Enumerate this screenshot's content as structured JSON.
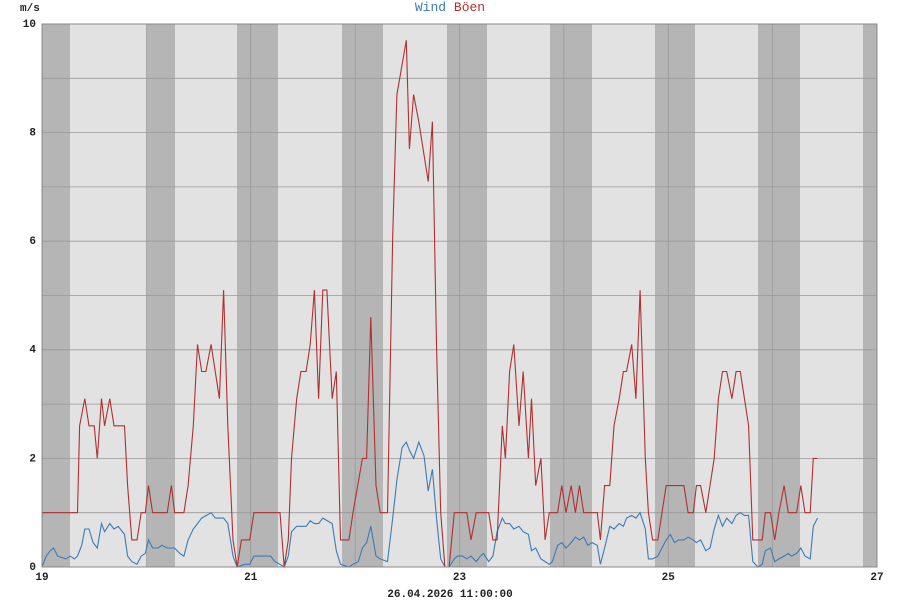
{
  "chart_data": {
    "type": "line",
    "unit_label": "m/s",
    "footer": "26.04.2026 11:00:00",
    "xlim": [
      19,
      27
    ],
    "xticks": [
      19,
      21,
      23,
      25,
      27
    ],
    "xminor": [
      20,
      22,
      24,
      26
    ],
    "ylim": [
      0,
      10
    ],
    "yticks": [
      0,
      2,
      4,
      6,
      8,
      10
    ],
    "yminor": [
      1,
      3,
      5,
      7,
      9
    ],
    "grid": true,
    "series": [
      {
        "name": "Wind",
        "color": "#3a7bb8",
        "x": [
          19.0,
          19.04,
          19.08,
          19.11,
          19.15,
          19.23,
          19.27,
          19.31,
          19.34,
          19.38,
          19.41,
          19.45,
          19.49,
          19.53,
          19.57,
          19.6,
          19.65,
          19.69,
          19.73,
          19.79,
          19.82,
          19.86,
          19.91,
          19.95,
          19.99,
          20.02,
          20.06,
          20.11,
          20.15,
          20.2,
          20.27,
          20.32,
          20.36,
          20.4,
          20.45,
          20.49,
          20.53,
          20.62,
          20.66,
          20.74,
          20.78,
          20.83,
          20.87,
          20.94,
          20.99,
          21.03,
          21.11,
          21.19,
          21.23,
          21.28,
          21.32,
          21.36,
          21.39,
          21.44,
          21.53,
          21.57,
          21.61,
          21.65,
          21.69,
          21.78,
          21.82,
          21.86,
          21.94,
          21.98,
          22.03,
          22.07,
          22.11,
          22.15,
          22.2,
          22.24,
          22.31,
          22.36,
          22.4,
          22.45,
          22.49,
          22.52,
          22.56,
          22.61,
          22.66,
          22.7,
          22.74,
          22.78,
          22.82,
          22.86,
          22.9,
          22.95,
          22.98,
          23.03,
          23.07,
          23.11,
          23.16,
          23.2,
          23.23,
          23.28,
          23.32,
          23.36,
          23.41,
          23.44,
          23.48,
          23.52,
          23.57,
          23.61,
          23.66,
          23.69,
          23.73,
          23.78,
          23.82,
          23.86,
          23.89,
          23.94,
          23.98,
          24.02,
          24.07,
          24.11,
          24.15,
          24.19,
          24.23,
          24.27,
          24.32,
          24.35,
          24.39,
          24.44,
          24.48,
          24.53,
          24.57,
          24.6,
          24.65,
          24.69,
          24.73,
          24.78,
          24.81,
          24.85,
          24.9,
          24.94,
          24.98,
          25.02,
          25.06,
          25.1,
          25.15,
          25.19,
          25.24,
          25.27,
          25.31,
          25.36,
          25.4,
          25.44,
          25.48,
          25.52,
          25.56,
          25.61,
          25.65,
          25.69,
          25.73,
          25.77,
          25.81,
          25.86,
          25.9,
          25.93,
          25.98,
          26.02,
          26.06,
          26.11,
          26.15,
          26.18,
          26.23,
          26.27,
          26.31,
          26.36,
          26.39,
          26.43
        ],
        "values": [
          0.0,
          0.2,
          0.3,
          0.35,
          0.2,
          0.15,
          0.2,
          0.15,
          0.2,
          0.4,
          0.7,
          0.7,
          0.45,
          0.35,
          0.8,
          0.65,
          0.8,
          0.7,
          0.75,
          0.6,
          0.2,
          0.1,
          0.05,
          0.2,
          0.25,
          0.5,
          0.35,
          0.35,
          0.4,
          0.35,
          0.35,
          0.25,
          0.2,
          0.5,
          0.7,
          0.8,
          0.9,
          1.0,
          0.9,
          0.9,
          0.8,
          0.2,
          0.0,
          0.05,
          0.05,
          0.2,
          0.2,
          0.2,
          0.1,
          0.05,
          0.0,
          0.2,
          0.65,
          0.75,
          0.75,
          0.85,
          0.8,
          0.8,
          0.9,
          0.8,
          0.3,
          0.05,
          0.0,
          0.05,
          0.1,
          0.35,
          0.45,
          0.75,
          0.2,
          0.15,
          0.1,
          0.9,
          1.6,
          2.2,
          2.3,
          2.15,
          2.0,
          2.3,
          2.05,
          1.4,
          1.8,
          0.9,
          0.15,
          0.0,
          0.0,
          0.15,
          0.2,
          0.2,
          0.15,
          0.2,
          0.1,
          0.2,
          0.25,
          0.1,
          0.2,
          0.65,
          0.9,
          0.8,
          0.8,
          0.7,
          0.75,
          0.65,
          0.6,
          0.3,
          0.35,
          0.15,
          0.1,
          0.05,
          0.1,
          0.4,
          0.45,
          0.35,
          0.45,
          0.55,
          0.5,
          0.55,
          0.4,
          0.45,
          0.4,
          0.05,
          0.35,
          0.75,
          0.7,
          0.8,
          0.75,
          0.9,
          0.95,
          0.9,
          1.0,
          0.7,
          0.15,
          0.15,
          0.2,
          0.35,
          0.5,
          0.6,
          0.45,
          0.5,
          0.5,
          0.55,
          0.5,
          0.45,
          0.5,
          0.3,
          0.35,
          0.7,
          0.95,
          0.75,
          0.9,
          0.8,
          0.95,
          1.0,
          0.95,
          0.95,
          0.1,
          0.0,
          0.05,
          0.3,
          0.35,
          0.1,
          0.15,
          0.2,
          0.25,
          0.2,
          0.25,
          0.35,
          0.2,
          0.15,
          0.75,
          0.9
        ]
      },
      {
        "name": "Böen",
        "color": "#b03030",
        "x": [
          19.0,
          19.34,
          19.36,
          19.41,
          19.45,
          19.5,
          19.53,
          19.57,
          19.6,
          19.65,
          19.69,
          19.79,
          19.82,
          19.86,
          19.91,
          19.95,
          19.99,
          20.02,
          20.06,
          20.2,
          20.24,
          20.27,
          20.36,
          20.4,
          20.45,
          20.49,
          20.53,
          20.57,
          20.62,
          20.7,
          20.74,
          20.78,
          20.83,
          20.87,
          20.91,
          20.99,
          21.03,
          21.28,
          21.32,
          21.36,
          21.39,
          21.44,
          21.48,
          21.53,
          21.57,
          21.61,
          21.65,
          21.69,
          21.73,
          21.78,
          21.82,
          21.86,
          21.94,
          21.98,
          22.07,
          22.11,
          22.15,
          22.2,
          22.24,
          22.31,
          22.36,
          22.4,
          22.49,
          22.52,
          22.56,
          22.61,
          22.7,
          22.74,
          22.78,
          22.82,
          22.86,
          22.9,
          22.95,
          23.07,
          23.11,
          23.16,
          23.28,
          23.32,
          23.36,
          23.41,
          23.44,
          23.48,
          23.52,
          23.57,
          23.61,
          23.66,
          23.69,
          23.73,
          23.78,
          23.82,
          23.86,
          23.94,
          23.98,
          24.02,
          24.07,
          24.11,
          24.15,
          24.19,
          24.32,
          24.35,
          24.39,
          24.44,
          24.48,
          24.53,
          24.57,
          24.6,
          24.65,
          24.69,
          24.73,
          24.78,
          24.81,
          24.85,
          24.9,
          24.94,
          24.98,
          25.15,
          25.19,
          25.24,
          25.27,
          25.31,
          25.36,
          25.4,
          25.44,
          25.48,
          25.52,
          25.56,
          25.61,
          25.65,
          25.69,
          25.77,
          25.81,
          25.9,
          25.93,
          25.98,
          26.02,
          26.06,
          26.11,
          26.15,
          26.23,
          26.27,
          26.31,
          26.36,
          26.39,
          26.43
        ],
        "values": [
          1.0,
          1.0,
          2.6,
          3.1,
          2.6,
          2.6,
          2.0,
          3.1,
          2.6,
          3.1,
          2.6,
          2.6,
          1.5,
          0.5,
          0.5,
          1.0,
          1.0,
          1.5,
          1.0,
          1.0,
          1.5,
          1.0,
          1.0,
          1.5,
          2.6,
          4.1,
          3.6,
          3.6,
          4.1,
          3.1,
          5.1,
          2.6,
          0.5,
          0.0,
          0.5,
          0.5,
          1.0,
          1.0,
          0.0,
          0.5,
          2.0,
          3.1,
          3.6,
          3.6,
          4.1,
          5.1,
          3.1,
          5.1,
          5.1,
          3.1,
          3.6,
          0.5,
          0.5,
          1.0,
          2.0,
          2.0,
          4.6,
          1.5,
          1.0,
          1.0,
          6.1,
          8.7,
          9.7,
          7.7,
          8.7,
          8.2,
          7.1,
          8.2,
          4.1,
          1.0,
          0.0,
          0.0,
          1.0,
          1.0,
          0.5,
          1.0,
          1.0,
          0.5,
          0.5,
          2.6,
          2.0,
          3.6,
          4.1,
          2.6,
          3.6,
          2.0,
          3.1,
          1.5,
          2.0,
          0.5,
          1.0,
          1.0,
          1.5,
          1.0,
          1.5,
          1.0,
          1.5,
          1.0,
          1.0,
          0.5,
          1.5,
          1.5,
          2.6,
          3.1,
          3.6,
          3.6,
          4.1,
          3.1,
          5.1,
          2.0,
          1.0,
          0.5,
          0.5,
          1.0,
          1.5,
          1.5,
          1.0,
          1.0,
          1.5,
          1.5,
          1.0,
          1.5,
          2.0,
          3.1,
          3.6,
          3.6,
          3.1,
          3.6,
          3.6,
          2.6,
          0.5,
          0.5,
          1.0,
          1.0,
          0.5,
          1.0,
          1.5,
          1.0,
          1.0,
          1.5,
          1.0,
          1.0,
          2.0,
          2.0
        ]
      }
    ]
  }
}
